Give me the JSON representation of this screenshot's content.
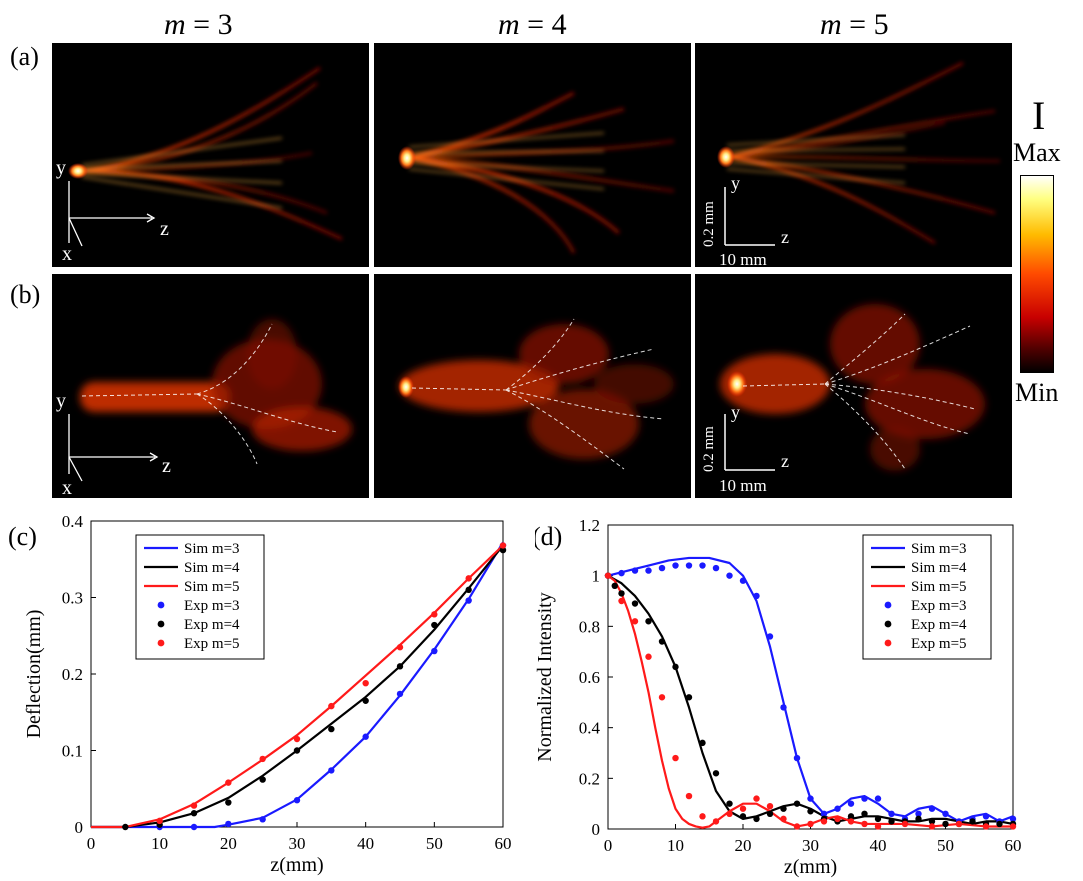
{
  "column_titles": [
    {
      "var": "m",
      "eq": " = 3"
    },
    {
      "var": "m",
      "eq": " = 4"
    },
    {
      "var": "m",
      "eq": " = 5"
    }
  ],
  "row_labels": {
    "a": "(a)",
    "b": "(b)"
  },
  "axes_labels": {
    "x": "x",
    "y": "y",
    "z": "z"
  },
  "scale_bars": {
    "vertical": "0.2 mm",
    "horizontal": "10 mm"
  },
  "colorbar": {
    "symbol": "I",
    "max": "Max",
    "min": "Min"
  },
  "chart_data": [
    {
      "panel_label": "(c)",
      "type": "line",
      "xlabel": "z(mm)",
      "ylabel": "Deflection(mm)",
      "xlim": [
        0,
        60
      ],
      "ylim": [
        0,
        0.4
      ],
      "xticks": [
        0,
        10,
        20,
        30,
        40,
        50,
        60
      ],
      "yticks": [
        0,
        0.1,
        0.2,
        0.3,
        0.4
      ],
      "ytick_labels": [
        "0",
        "0.1",
        "0.2",
        "0.3",
        "0.4"
      ],
      "legend_position": "top-left",
      "series": [
        {
          "name": "Sim m=3",
          "kind": "line",
          "color": "#1a1aff",
          "x": [
            0,
            15,
            18,
            20,
            25,
            30,
            35,
            40,
            45,
            50,
            55,
            60
          ],
          "y": [
            0,
            0,
            0,
            0.003,
            0.012,
            0.036,
            0.075,
            0.118,
            0.172,
            0.232,
            0.298,
            0.372
          ]
        },
        {
          "name": "Sim m=4",
          "kind": "line",
          "color": "#000000",
          "x": [
            0,
            5,
            10,
            15,
            20,
            25,
            30,
            35,
            40,
            45,
            50,
            55,
            60
          ],
          "y": [
            0,
            0,
            0.006,
            0.018,
            0.038,
            0.067,
            0.1,
            0.135,
            0.17,
            0.21,
            0.258,
            0.312,
            0.368
          ]
        },
        {
          "name": "Sim m=5",
          "kind": "line",
          "color": "#ff1a1a",
          "x": [
            0,
            5,
            10,
            15,
            20,
            25,
            30,
            35,
            40,
            45,
            50,
            55,
            60
          ],
          "y": [
            0,
            0,
            0.01,
            0.03,
            0.058,
            0.088,
            0.12,
            0.158,
            0.198,
            0.238,
            0.28,
            0.325,
            0.368
          ]
        },
        {
          "name": "Exp m=3",
          "kind": "scatter",
          "color": "#1a1aff",
          "x": [
            10,
            15,
            20,
            25,
            30,
            35,
            40,
            45,
            50,
            55,
            60
          ],
          "y": [
            0,
            0,
            0.004,
            0.01,
            0.035,
            0.074,
            0.118,
            0.174,
            0.23,
            0.296,
            0.368
          ]
        },
        {
          "name": "Exp m=4",
          "kind": "scatter",
          "color": "#000000",
          "x": [
            5,
            10,
            15,
            20,
            25,
            30,
            35,
            40,
            45,
            50,
            55,
            60
          ],
          "y": [
            0,
            0.003,
            0.018,
            0.032,
            0.062,
            0.1,
            0.128,
            0.165,
            0.21,
            0.264,
            0.31,
            0.362
          ]
        },
        {
          "name": "Exp m=5",
          "kind": "scatter",
          "color": "#ff1a1a",
          "x": [
            10,
            15,
            20,
            25,
            30,
            35,
            40,
            45,
            50,
            55,
            60
          ],
          "y": [
            0.008,
            0.028,
            0.058,
            0.089,
            0.115,
            0.158,
            0.188,
            0.235,
            0.278,
            0.325,
            0.368
          ]
        }
      ]
    },
    {
      "panel_label": "(d)",
      "type": "line",
      "xlabel": "z(mm)",
      "ylabel": "Normalized Intensity",
      "xlim": [
        0,
        60
      ],
      "ylim": [
        0,
        1.2
      ],
      "xticks": [
        0,
        10,
        20,
        30,
        40,
        50,
        60
      ],
      "yticks": [
        0,
        0.2,
        0.4,
        0.6,
        0.8,
        1,
        1.2
      ],
      "ytick_labels": [
        "0",
        "0.2",
        "0.4",
        "0.6",
        "0.8",
        "1",
        "1.2"
      ],
      "legend_position": "top-right",
      "series": [
        {
          "name": "Sim m=3",
          "kind": "line",
          "color": "#1a1aff",
          "x": [
            0,
            3,
            6,
            9,
            12,
            15,
            18,
            20,
            22,
            24,
            26,
            28,
            30,
            32,
            34,
            36,
            38,
            40,
            42,
            44,
            46,
            48,
            50,
            52,
            54,
            56,
            58,
            60
          ],
          "y": [
            1.0,
            1.02,
            1.04,
            1.06,
            1.07,
            1.07,
            1.05,
            1.0,
            0.9,
            0.72,
            0.5,
            0.28,
            0.12,
            0.06,
            0.08,
            0.12,
            0.13,
            0.1,
            0.06,
            0.05,
            0.08,
            0.09,
            0.06,
            0.03,
            0.05,
            0.06,
            0.03,
            0.05
          ]
        },
        {
          "name": "Sim m=4",
          "kind": "line",
          "color": "#000000",
          "x": [
            0,
            2,
            4,
            6,
            8,
            10,
            12,
            14,
            16,
            18,
            20,
            22,
            24,
            26,
            28,
            30,
            32,
            34,
            36,
            38,
            40,
            42,
            44,
            46,
            48,
            50,
            52,
            54,
            56,
            58,
            60
          ],
          "y": [
            1.0,
            0.97,
            0.92,
            0.85,
            0.76,
            0.64,
            0.48,
            0.3,
            0.15,
            0.07,
            0.04,
            0.05,
            0.07,
            0.09,
            0.1,
            0.08,
            0.05,
            0.03,
            0.04,
            0.05,
            0.05,
            0.04,
            0.03,
            0.03,
            0.04,
            0.04,
            0.03,
            0.02,
            0.03,
            0.03,
            0.02
          ]
        },
        {
          "name": "Sim m=5",
          "kind": "line",
          "color": "#ff1a1a",
          "x": [
            0,
            1,
            2,
            3,
            4,
            5,
            6,
            7,
            8,
            9,
            10,
            11,
            12,
            13,
            14,
            15,
            16,
            18,
            20,
            22,
            24,
            26,
            28,
            30,
            32,
            34,
            36,
            38,
            40,
            44,
            48,
            52,
            56,
            60
          ],
          "y": [
            1.0,
            0.98,
            0.93,
            0.86,
            0.77,
            0.66,
            0.54,
            0.4,
            0.27,
            0.16,
            0.08,
            0.04,
            0.02,
            0.01,
            0.005,
            0.01,
            0.03,
            0.07,
            0.1,
            0.1,
            0.07,
            0.03,
            0.01,
            0.02,
            0.04,
            0.05,
            0.03,
            0.02,
            0.02,
            0.02,
            0.01,
            0.02,
            0.01,
            0.01
          ]
        },
        {
          "name": "Exp m=3",
          "kind": "scatter",
          "color": "#1a1aff",
          "x": [
            0,
            2,
            4,
            6,
            8,
            10,
            12,
            14,
            16,
            18,
            20,
            22,
            24,
            26,
            28,
            30,
            32,
            34,
            36,
            38,
            40,
            42,
            44,
            46,
            48,
            50,
            52,
            54,
            56,
            58,
            60
          ],
          "y": [
            1.0,
            1.01,
            1.02,
            1.02,
            1.03,
            1.04,
            1.04,
            1.04,
            1.03,
            1.0,
            0.98,
            0.92,
            0.76,
            0.48,
            0.28,
            0.12,
            0.06,
            0.08,
            0.1,
            0.12,
            0.12,
            0.06,
            0.04,
            0.06,
            0.08,
            0.06,
            0.03,
            0.04,
            0.05,
            0.03,
            0.04
          ]
        },
        {
          "name": "Exp m=4",
          "kind": "scatter",
          "color": "#000000",
          "x": [
            0,
            1,
            2,
            4,
            6,
            8,
            10,
            12,
            14,
            16,
            18,
            20,
            22,
            24,
            26,
            28,
            30,
            32,
            34,
            36,
            38,
            40,
            42,
            44,
            46,
            48,
            50,
            52,
            54,
            56,
            58,
            60
          ],
          "y": [
            1.0,
            0.96,
            0.93,
            0.89,
            0.82,
            0.74,
            0.64,
            0.52,
            0.34,
            0.22,
            0.1,
            0.05,
            0.04,
            0.06,
            0.08,
            0.1,
            0.07,
            0.04,
            0.03,
            0.05,
            0.06,
            0.04,
            0.03,
            0.03,
            0.04,
            0.03,
            0.02,
            0.02,
            0.03,
            0.02,
            0.02,
            0.02
          ]
        },
        {
          "name": "Exp m=5",
          "kind": "scatter",
          "color": "#ff1a1a",
          "x": [
            0,
            2,
            4,
            6,
            8,
            10,
            12,
            14,
            16,
            18,
            20,
            22,
            24,
            26,
            28,
            30,
            32,
            34,
            36,
            38,
            40,
            44,
            48,
            52,
            56,
            60
          ],
          "y": [
            1.0,
            0.9,
            0.82,
            0.68,
            0.52,
            0.28,
            0.13,
            0.05,
            0.03,
            0.06,
            0.08,
            0.12,
            0.09,
            0.04,
            0.01,
            0.02,
            0.03,
            0.04,
            0.03,
            0.02,
            0.01,
            0.02,
            0.01,
            0.02,
            0.01,
            0.01
          ]
        }
      ]
    }
  ]
}
